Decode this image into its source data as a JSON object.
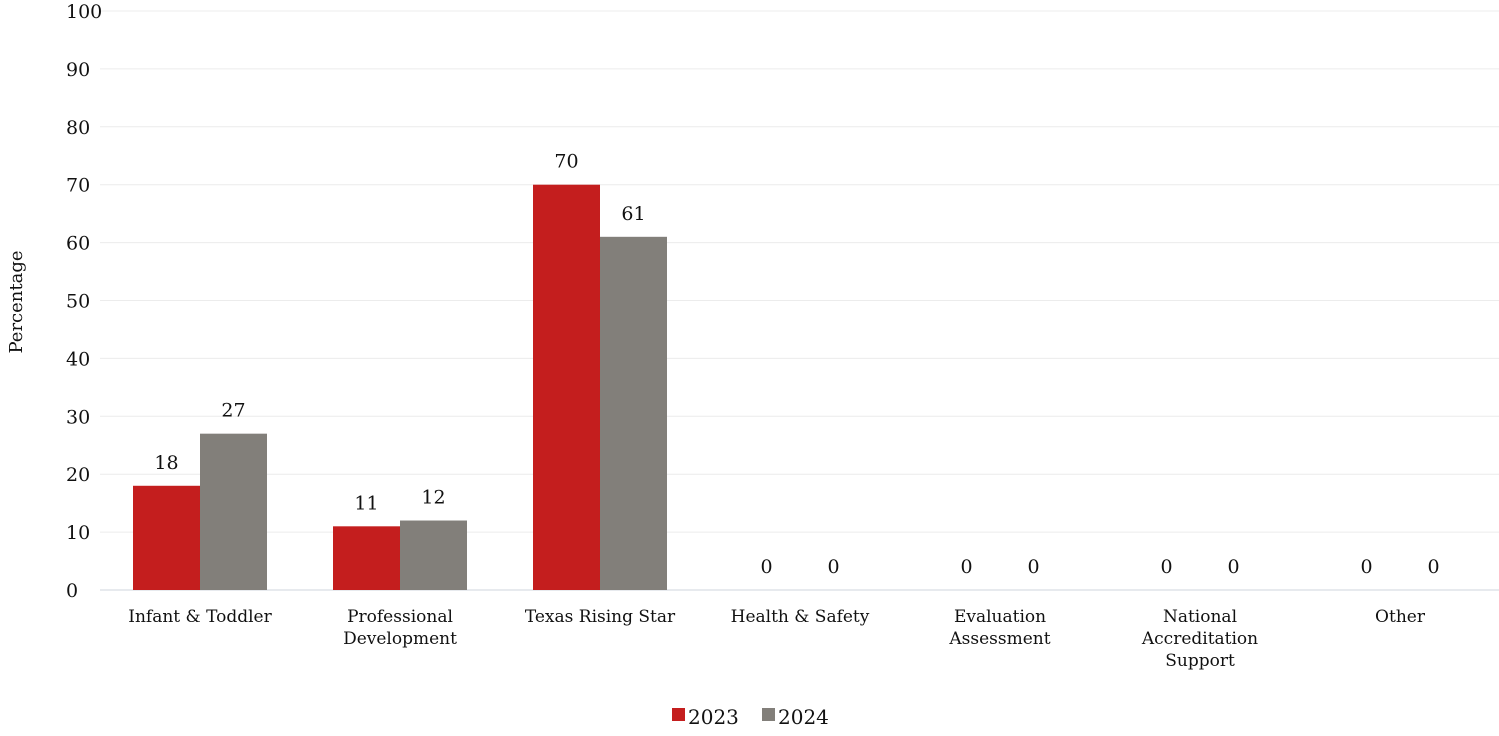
{
  "chart_data": {
    "type": "bar",
    "categories": [
      [
        "Infant & Toddler"
      ],
      [
        "Professional",
        "Development"
      ],
      [
        "Texas Rising Star"
      ],
      [
        "Health & Safety"
      ],
      [
        "Evaluation",
        "Assessment"
      ],
      [
        "National",
        "Accreditation",
        "Support"
      ],
      [
        "Other"
      ]
    ],
    "series": [
      {
        "name": "2023",
        "values": [
          18,
          11,
          70,
          0,
          0,
          0,
          0
        ],
        "color": "#c41e1e"
      },
      {
        "name": "2024",
        "values": [
          27,
          12,
          61,
          0,
          0,
          0,
          0
        ],
        "color": "#827f7a"
      }
    ],
    "ylabel": "Percentage",
    "ylim": [
      0,
      100
    ],
    "yticks": [
      0,
      10,
      20,
      30,
      40,
      50,
      60,
      70,
      80,
      90,
      100
    ],
    "grid": true,
    "legend_position": "bottom-center",
    "data_labels": true
  }
}
